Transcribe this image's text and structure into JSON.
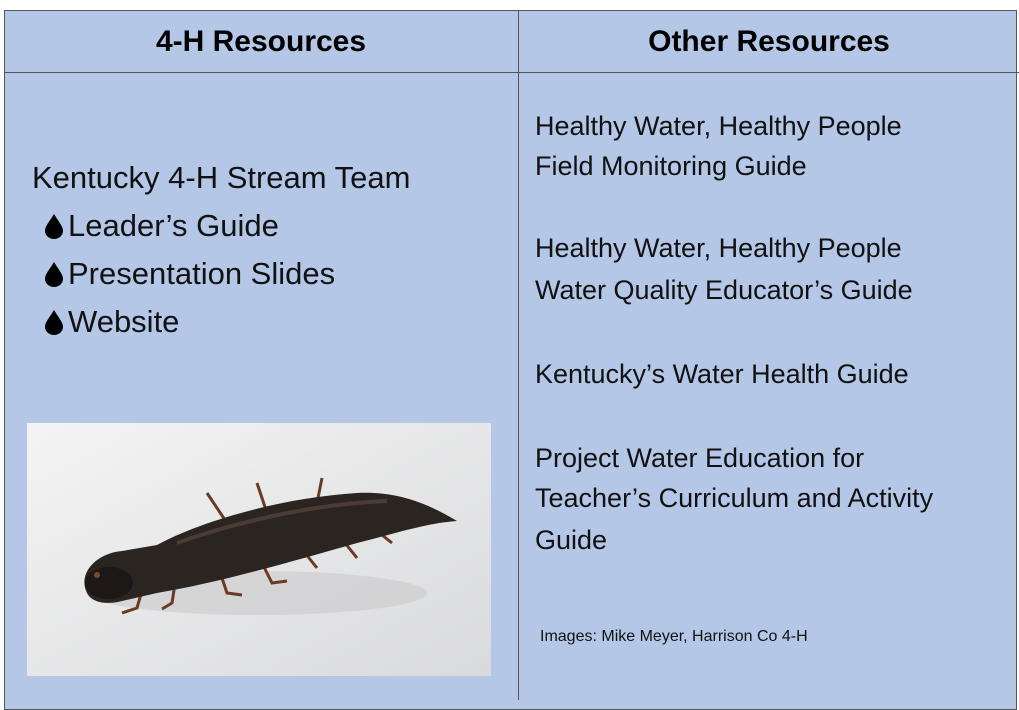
{
  "table": {
    "headers": [
      "4-H Resources",
      "Other Resources"
    ],
    "left": {
      "title": "Kentucky 4-H Stream Team",
      "items": [
        "Leader’s Guide",
        "Presentation Slides",
        "Website"
      ]
    },
    "right": {
      "resources": [
        [
          "Healthy Water, Healthy People",
          "Field Monitoring Guide"
        ],
        [
          "Healthy Water, Healthy People",
          "Water Quality Educator’s Guide"
        ],
        [
          "Kentucky’s Water Health Guide"
        ],
        [
          "Project Water Education for",
          "Teacher’s Curriculum and Activity",
          "Guide"
        ]
      ],
      "credit": "Images: Mike Meyer, Harrison Co 4-H"
    }
  }
}
